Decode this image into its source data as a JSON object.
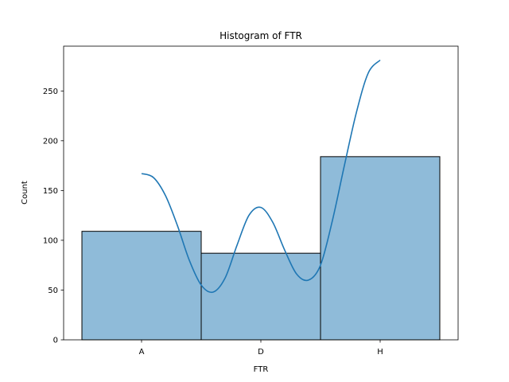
{
  "chart_data": {
    "type": "bar",
    "title": "Histogram of FTR",
    "xlabel": "FTR",
    "ylabel": "Count",
    "categories": [
      "A",
      "D",
      "H"
    ],
    "values": [
      109,
      87,
      184
    ],
    "ylim": [
      0,
      295
    ],
    "yticks": [
      0,
      50,
      100,
      150,
      200,
      250
    ],
    "grid": false,
    "bar_color": "#1f77b4",
    "bar_fill_opacity": 0.5,
    "bar_edge_color": "#000000",
    "kde": {
      "color": "#1f77b4",
      "x": [
        0.0,
        0.1,
        0.2,
        0.3,
        0.4,
        0.5,
        0.6,
        0.7,
        0.8,
        0.9,
        1.0,
        1.1,
        1.2,
        1.3,
        1.4,
        1.5,
        1.6,
        1.7,
        1.8,
        1.9,
        2.0
      ],
      "y": [
        167,
        163,
        145,
        115,
        80,
        55,
        48,
        62,
        95,
        125,
        133,
        118,
        90,
        66,
        60,
        75,
        120,
        175,
        228,
        268,
        281
      ]
    }
  }
}
